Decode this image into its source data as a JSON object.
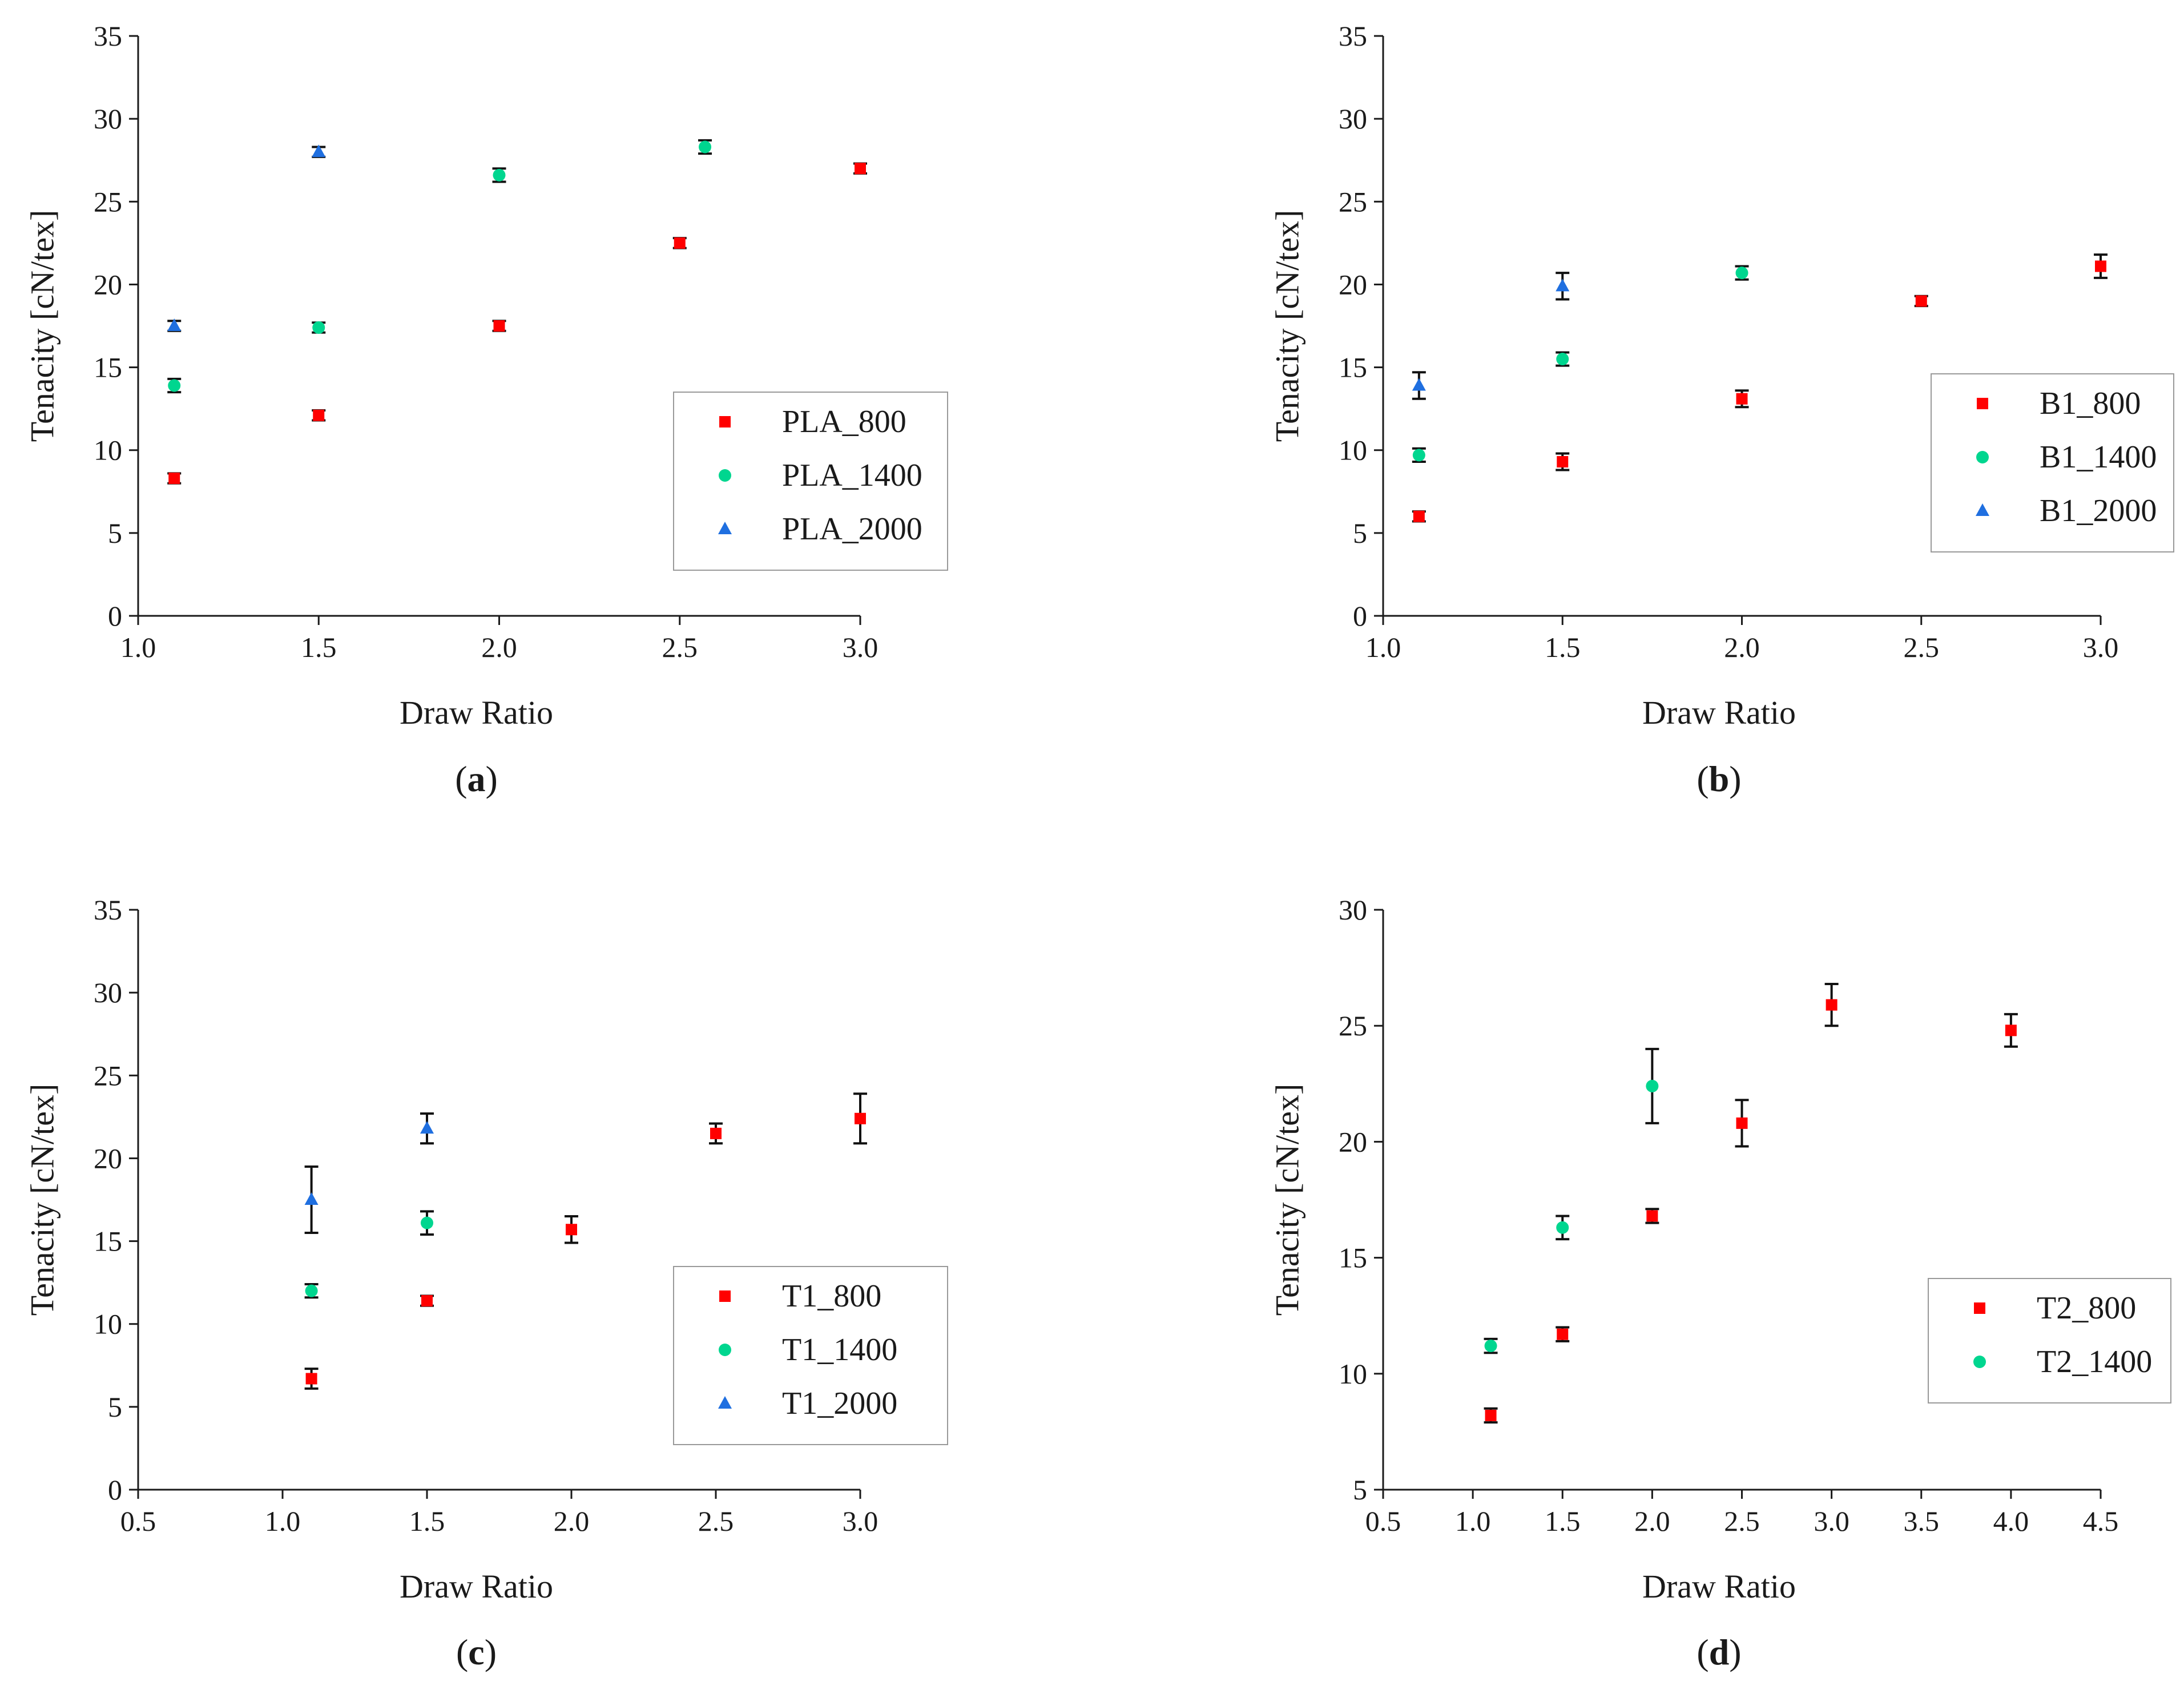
{
  "chart_data": [
    {
      "type": "scatter",
      "panel_label": "a",
      "xlabel": "Draw Ratio",
      "ylabel": "Tenacity [cN/tex]",
      "xlim": [
        1.0,
        3.0
      ],
      "ylim": [
        0,
        35
      ],
      "xticks": [
        1.0,
        1.5,
        2.0,
        2.5,
        3.0
      ],
      "xtick_labels": [
        "1.0",
        "1.5",
        "2.0",
        "2.5",
        "3.0"
      ],
      "yticks": [
        0,
        5,
        10,
        15,
        20,
        25,
        30,
        35
      ],
      "ytick_labels": [
        "0",
        "5",
        "10",
        "15",
        "20",
        "25",
        "30",
        "35"
      ],
      "legend_position": "lower-right",
      "series": [
        {
          "name": "PLA_800",
          "marker": "square",
          "color": "#ff0000",
          "points": [
            {
              "x": 1.1,
              "y": 8.3,
              "err": 0.3
            },
            {
              "x": 1.5,
              "y": 12.1,
              "err": 0.3
            },
            {
              "x": 2.0,
              "y": 17.5,
              "err": 0.3
            },
            {
              "x": 2.5,
              "y": 22.5,
              "err": 0.3
            },
            {
              "x": 3.0,
              "y": 27.0,
              "err": 0.3
            }
          ]
        },
        {
          "name": "PLA_1400",
          "marker": "circle",
          "color": "#00d68f",
          "points": [
            {
              "x": 1.1,
              "y": 13.9,
              "err": 0.4
            },
            {
              "x": 1.5,
              "y": 17.4,
              "err": 0.3
            },
            {
              "x": 2.0,
              "y": 26.6,
              "err": 0.4
            },
            {
              "x": 2.57,
              "y": 28.3,
              "err": 0.4
            }
          ]
        },
        {
          "name": "PLA_2000",
          "marker": "triangle",
          "color": "#1f6fe0",
          "points": [
            {
              "x": 1.1,
              "y": 17.5,
              "err": 0.3
            },
            {
              "x": 1.5,
              "y": 28.0,
              "err": 0.3
            }
          ]
        }
      ]
    },
    {
      "type": "scatter",
      "panel_label": "b",
      "xlabel": "Draw Ratio",
      "ylabel": "Tenacity [cN/tex]",
      "xlim": [
        1.0,
        3.0
      ],
      "ylim": [
        0,
        35
      ],
      "xticks": [
        1.0,
        1.5,
        2.0,
        2.5,
        3.0
      ],
      "xtick_labels": [
        "1.0",
        "1.5",
        "2.0",
        "2.5",
        "3.0"
      ],
      "yticks": [
        0,
        5,
        10,
        15,
        20,
        25,
        30,
        35
      ],
      "ytick_labels": [
        "0",
        "5",
        "10",
        "15",
        "20",
        "25",
        "30",
        "35"
      ],
      "legend_position": "center-right",
      "series": [
        {
          "name": "B1_800",
          "marker": "square",
          "color": "#ff0000",
          "points": [
            {
              "x": 1.1,
              "y": 6.0,
              "err": 0.3
            },
            {
              "x": 1.5,
              "y": 9.3,
              "err": 0.5
            },
            {
              "x": 2.0,
              "y": 13.1,
              "err": 0.5
            },
            {
              "x": 2.5,
              "y": 19.0,
              "err": 0.3
            },
            {
              "x": 3.0,
              "y": 21.1,
              "err": 0.7
            }
          ]
        },
        {
          "name": "B1_1400",
          "marker": "circle",
          "color": "#00d68f",
          "points": [
            {
              "x": 1.1,
              "y": 9.7,
              "err": 0.4
            },
            {
              "x": 1.5,
              "y": 15.5,
              "err": 0.4
            },
            {
              "x": 2.0,
              "y": 20.7,
              "err": 0.4
            }
          ]
        },
        {
          "name": "B1_2000",
          "marker": "triangle",
          "color": "#1f6fe0",
          "points": [
            {
              "x": 1.1,
              "y": 13.9,
              "err": 0.8
            },
            {
              "x": 1.5,
              "y": 19.9,
              "err": 0.8
            }
          ]
        }
      ]
    },
    {
      "type": "scatter",
      "panel_label": "c",
      "xlabel": "Draw Ratio",
      "ylabel": "Tenacity [cN/tex]",
      "xlim": [
        0.5,
        3.0
      ],
      "ylim": [
        0,
        35
      ],
      "xticks": [
        0.5,
        1.0,
        1.5,
        2.0,
        2.5,
        3.0
      ],
      "xtick_labels": [
        "0.5",
        "1.0",
        "1.5",
        "2.0",
        "2.5",
        "3.0"
      ],
      "yticks": [
        0,
        5,
        10,
        15,
        20,
        25,
        30,
        35
      ],
      "ytick_labels": [
        "0",
        "5",
        "10",
        "15",
        "20",
        "25",
        "30",
        "35"
      ],
      "legend_position": "lower-right",
      "series": [
        {
          "name": "T1_800",
          "marker": "square",
          "color": "#ff0000",
          "points": [
            {
              "x": 1.1,
              "y": 6.7,
              "err": 0.6
            },
            {
              "x": 1.5,
              "y": 11.4,
              "err": 0.3
            },
            {
              "x": 2.0,
              "y": 15.7,
              "err": 0.8
            },
            {
              "x": 2.5,
              "y": 21.5,
              "err": 0.6
            },
            {
              "x": 3.0,
              "y": 22.4,
              "err": 1.5
            }
          ]
        },
        {
          "name": "T1_1400",
          "marker": "circle",
          "color": "#00d68f",
          "points": [
            {
              "x": 1.1,
              "y": 12.0,
              "err": 0.4
            },
            {
              "x": 1.5,
              "y": 16.1,
              "err": 0.7
            }
          ]
        },
        {
          "name": "T1_2000",
          "marker": "triangle",
          "color": "#1f6fe0",
          "points": [
            {
              "x": 1.1,
              "y": 17.5,
              "err": 2.0
            },
            {
              "x": 1.5,
              "y": 21.8,
              "err": 0.9
            }
          ]
        }
      ]
    },
    {
      "type": "scatter",
      "panel_label": "d",
      "xlabel": "Draw Ratio",
      "ylabel": "Tenacity [cN/tex]",
      "xlim": [
        0.5,
        4.5
      ],
      "ylim": [
        5,
        30
      ],
      "xticks": [
        0.5,
        1.0,
        1.5,
        2.0,
        2.5,
        3.0,
        3.5,
        4.0,
        4.5
      ],
      "xtick_labels": [
        "0.5",
        "1.0",
        "1.5",
        "2.0",
        "2.5",
        "3.0",
        "3.5",
        "4.0",
        "4.5"
      ],
      "yticks": [
        5,
        10,
        15,
        20,
        25,
        30
      ],
      "ytick_labels": [
        "5",
        "10",
        "15",
        "20",
        "25",
        "30"
      ],
      "legend_position": "center-right",
      "series": [
        {
          "name": "T2_800",
          "marker": "square",
          "color": "#ff0000",
          "points": [
            {
              "x": 1.1,
              "y": 8.2,
              "err": 0.3
            },
            {
              "x": 1.5,
              "y": 11.7,
              "err": 0.3
            },
            {
              "x": 2.0,
              "y": 16.8,
              "err": 0.3
            },
            {
              "x": 2.5,
              "y": 20.8,
              "err": 1.0
            },
            {
              "x": 3.0,
              "y": 25.9,
              "err": 0.9
            },
            {
              "x": 4.0,
              "y": 24.8,
              "err": 0.7
            }
          ]
        },
        {
          "name": "T2_1400",
          "marker": "circle",
          "color": "#00d68f",
          "points": [
            {
              "x": 1.1,
              "y": 11.2,
              "err": 0.3
            },
            {
              "x": 1.5,
              "y": 16.3,
              "err": 0.5
            },
            {
              "x": 2.0,
              "y": 22.4,
              "err": 1.6
            }
          ]
        }
      ]
    }
  ]
}
